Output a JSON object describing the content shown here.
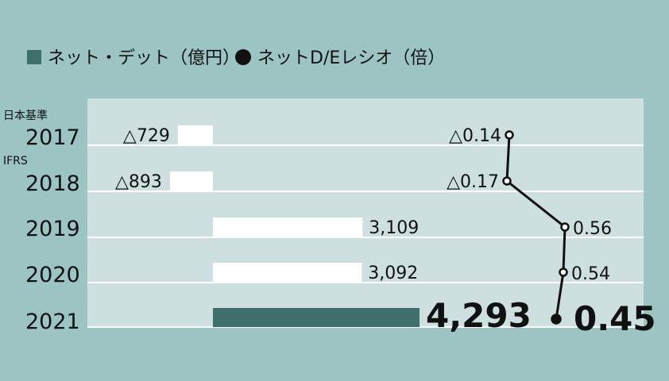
{
  "legend": {
    "bar_label": "ネット・デット（億円）",
    "line_label": "ネットD/Eレシオ（倍）"
  },
  "colors": {
    "background": "#9cc4c3",
    "panel": "#cde0df",
    "bar_highlight": "#3f6f6b",
    "bar": "#ffffff",
    "line": "#111111"
  },
  "chart_data": {
    "type": "bar",
    "categories": [
      "2017",
      "2018",
      "2019",
      "2020",
      "2021"
    ],
    "standards": [
      {
        "year": "2017",
        "label": "日本基準"
      },
      {
        "year": "2018",
        "label": "IFRS"
      }
    ],
    "series": [
      {
        "name": "ネット・デット（億円）",
        "values": [
          -729,
          -893,
          3109,
          3092,
          4293
        ],
        "labels": [
          "△729",
          "△893",
          "3,109",
          "3,092",
          "4,293"
        ]
      },
      {
        "name": "ネットD/Eレシオ（倍）",
        "type": "line",
        "values": [
          -0.14,
          -0.17,
          0.56,
          0.54,
          0.45
        ],
        "labels": [
          "△0.14",
          "△0.17",
          "0.56",
          "0.54",
          "0.45"
        ]
      }
    ],
    "highlight_category": "2021"
  }
}
